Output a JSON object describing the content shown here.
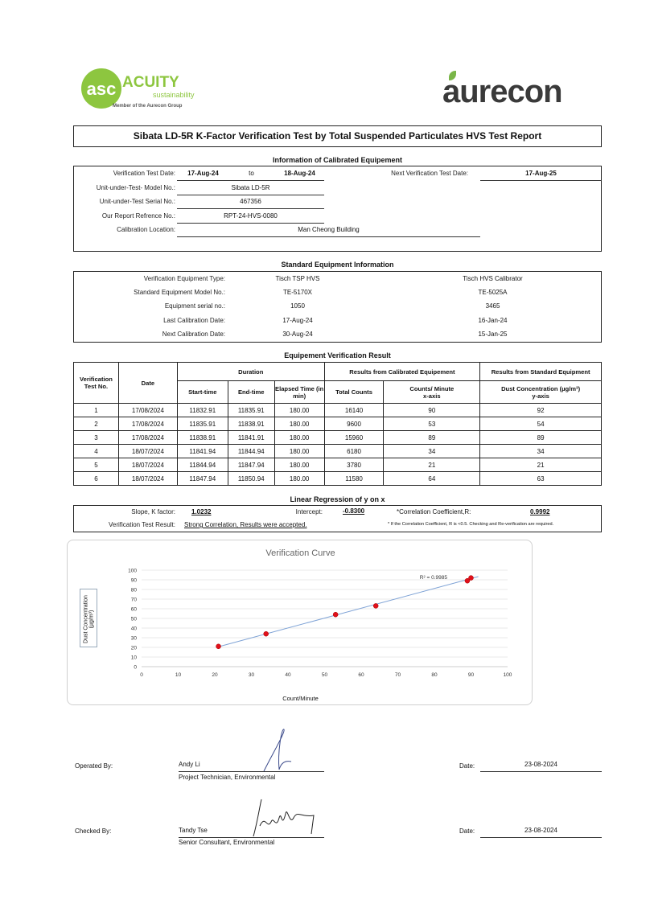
{
  "logos": {
    "left": {
      "name": "ACUITY",
      "sub": "sustainability",
      "tag": "Member of the Aurecon Group",
      "mark": "asc",
      "color": "#8dc63f"
    },
    "right": {
      "name": "aurecon",
      "color": "#3a3a3a",
      "leaf": "#7ab648"
    }
  },
  "title": "Sibata LD-5R K-Factor Verification Test by Total Suspended Particulates HVS Test Report",
  "calibrated": {
    "heading": "Information of Calibrated Equipement",
    "test_date_label": "Verification Test Date:",
    "test_date_from": "17-Aug-24",
    "to": "to",
    "test_date_to": "18-Aug-24",
    "next_label": "Next Verification Test Date:",
    "next_value": "17-Aug-25",
    "model_label": "Unit-under-Test- Model No.:",
    "model_value": "Sibata LD-5R",
    "serial_label": "Unit-under-Test Serial No.:",
    "serial_value": "467356",
    "ref_label": "Our Report Refrence No.:",
    "ref_value": "RPT-24-HVS-0080",
    "location_label": "Calibration Location:",
    "location_value": "Man Cheong Building"
  },
  "standard": {
    "heading": "Standard Equipment Information",
    "rows": [
      {
        "label": "Verification Equipment Type:",
        "a": "Tisch TSP HVS",
        "b": "Tisch HVS Calibrator"
      },
      {
        "label": "Standard Equipment Model No.:",
        "a": "TE-5170X",
        "b": "TE-5025A"
      },
      {
        "label": "Equipment serial no.:",
        "a": "1050",
        "b": "3465"
      },
      {
        "label": "Last Calibration Date:",
        "a": "17-Aug-24",
        "b": "16-Jan-24"
      },
      {
        "label": "Next Calibration Date:",
        "a": "30-Aug-24",
        "b": "15-Jan-25"
      }
    ]
  },
  "verification": {
    "heading": "Equipement Verification Result",
    "headers": {
      "test_no": "Verification Test No.",
      "date": "Date",
      "duration": "Duration",
      "calibrated": "Results from Calibrated Equipement",
      "standard": "Results from Standard Equipment",
      "start": "Start-time",
      "end": "End-time",
      "elapsed": "Elapsed Time (in min)",
      "total": "Total Counts",
      "cpm": "Counts/ Minute",
      "cpm_axis": "x-axis",
      "dust": "Dust Concentration (µg/m³)",
      "dust_axis": "y-axis"
    },
    "rows": [
      [
        "1",
        "17/08/2024",
        "11832.91",
        "11835.91",
        "180.00",
        "16140",
        "90",
        "92"
      ],
      [
        "2",
        "17/08/2024",
        "11835.91",
        "11838.91",
        "180.00",
        "9600",
        "53",
        "54"
      ],
      [
        "3",
        "17/08/2024",
        "11838.91",
        "11841.91",
        "180.00",
        "15960",
        "89",
        "89"
      ],
      [
        "4",
        "18/07/2024",
        "11841.94",
        "11844.94",
        "180.00",
        "6180",
        "34",
        "34"
      ],
      [
        "5",
        "18/07/2024",
        "11844.94",
        "11847.94",
        "180.00",
        "3780",
        "21",
        "21"
      ],
      [
        "6",
        "18/07/2024",
        "11847.94",
        "11850.94",
        "180.00",
        "11580",
        "64",
        "63"
      ]
    ]
  },
  "regression": {
    "heading": "Linear Regression of y on x",
    "slope_label": "Slope, K factor:",
    "slope": "1.0232",
    "intercept_label": "Intercept:",
    "intercept": "-0.8300",
    "r_label": "*Correlation Coefficient,R:",
    "r": "0.9992",
    "result_label": "Verification Test Result:",
    "result": "Strong Correlation, Results were accepted.",
    "note": "* If the Correlation Coefficient, R is <0.5. Checking and Re-verification are required."
  },
  "chart_data": {
    "type": "scatter",
    "title": "Verification Curve",
    "xlabel": "Count/Minute",
    "ylabel": "Dust Concentration (µg/m³)",
    "xlim": [
      0,
      100
    ],
    "ylim": [
      0,
      100
    ],
    "xticks": [
      "0",
      "10",
      "20",
      "30",
      "40",
      "50",
      "60",
      "70",
      "80",
      "90",
      "100"
    ],
    "yticks": [
      "0",
      "10",
      "20",
      "30",
      "40",
      "50",
      "60",
      "70",
      "80",
      "90",
      "100"
    ],
    "points": [
      [
        90,
        92
      ],
      [
        53,
        54
      ],
      [
        89,
        89
      ],
      [
        34,
        34
      ],
      [
        21,
        21
      ],
      [
        64,
        63
      ]
    ],
    "trendline": {
      "slope": 1.0232,
      "intercept": -0.83,
      "x_range": [
        21,
        92
      ],
      "label": "R² = 0.9985"
    },
    "grid": "horizontal",
    "point_color": "#e0101a",
    "line_color": "#7fa3d6"
  },
  "signatures": {
    "operated_label": "Operated By:",
    "operated_name": "Andy Li",
    "operated_role": "Project Technician, Environmental",
    "operated_date_label": "Date:",
    "operated_date": "23-08-2024",
    "checked_label": "Checked By:",
    "checked_name": "Tandy Tse",
    "checked_role": "Senior Consultant, Environmental",
    "checked_date_label": "Date:",
    "checked_date": "23-08-2024"
  }
}
